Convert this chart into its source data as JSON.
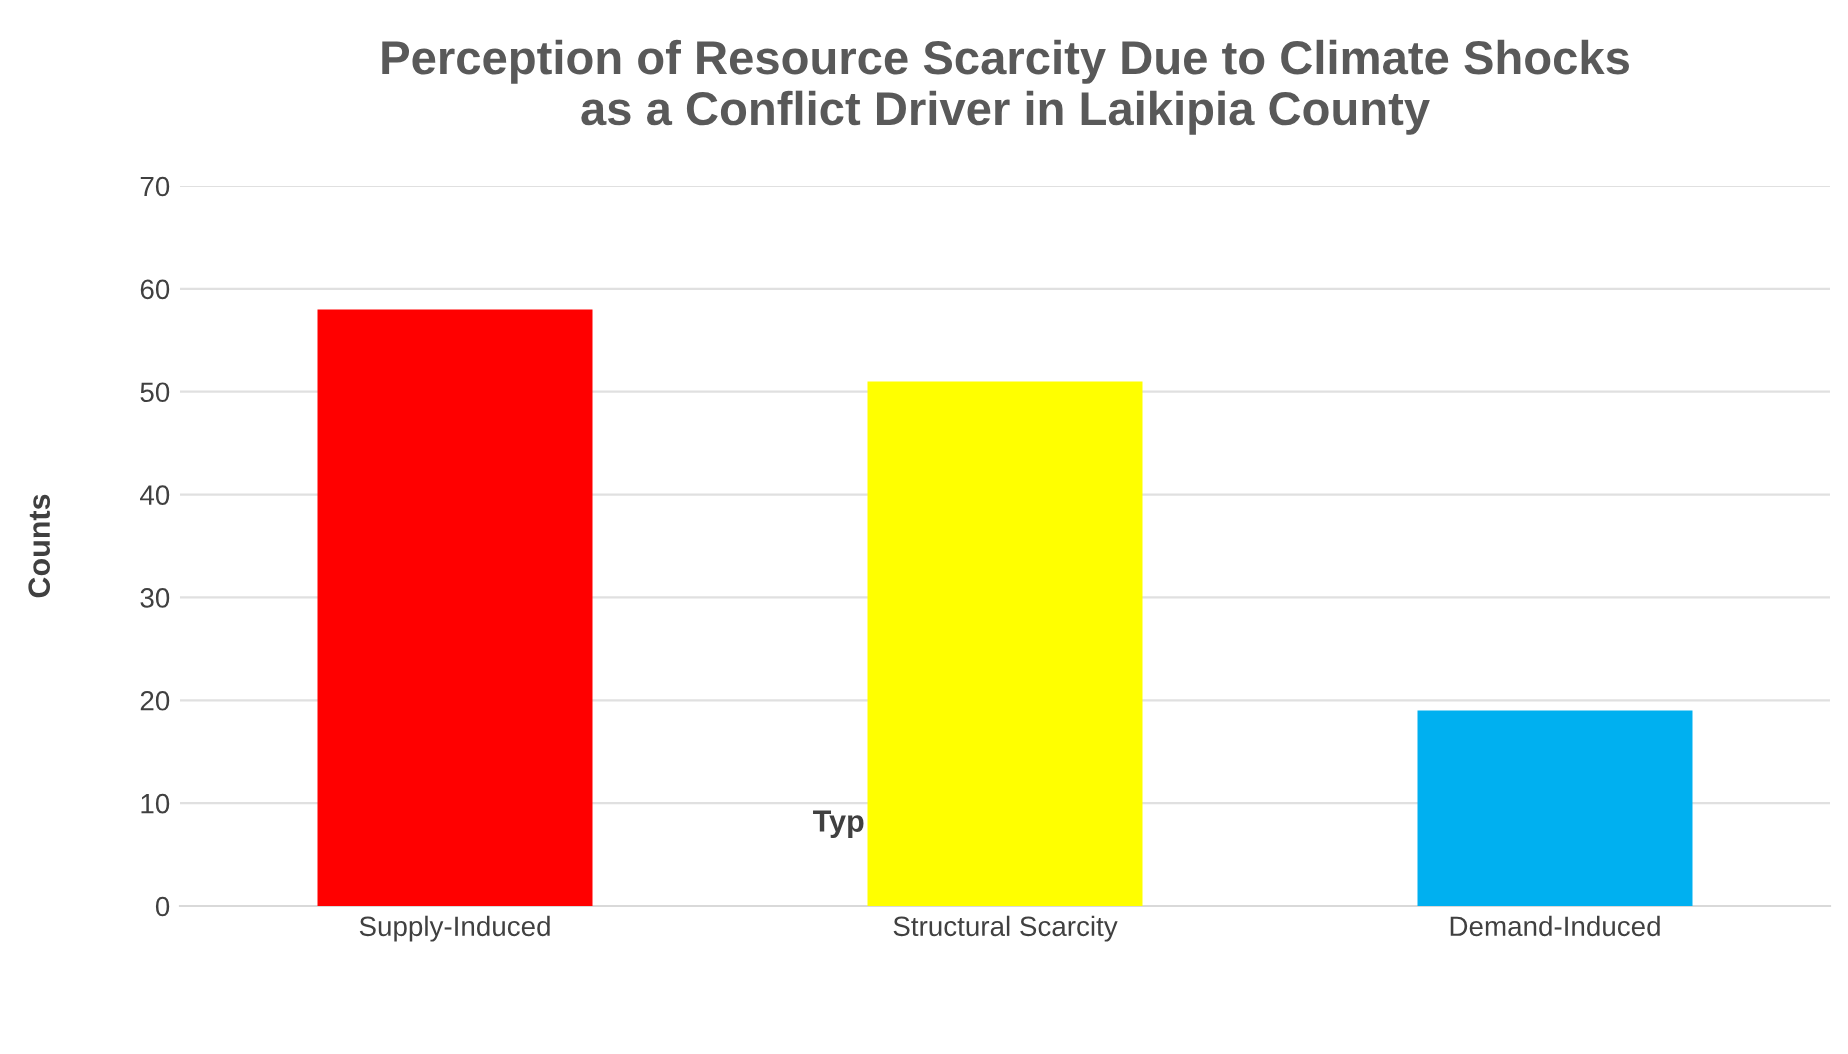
{
  "chart_data": {
    "type": "bar",
    "title": "Perception of Resource Scarcity Due to Climate Shocks\nas a Conflict Driver in Laikipia County",
    "ylabel": "Counts",
    "categories": [
      "Supply-Induced",
      "Structural Scarcity",
      "Demand-Induced"
    ],
    "values": [
      58,
      51,
      19
    ],
    "colors": [
      "#ff0000",
      "#ffff00",
      "#00b0f0"
    ],
    "ylim": [
      0,
      70
    ],
    "yticks": [
      0,
      10,
      20,
      30,
      40,
      50,
      60,
      70
    ],
    "grid": "y",
    "legend": false,
    "annotations": [
      "Typ"
    ]
  }
}
